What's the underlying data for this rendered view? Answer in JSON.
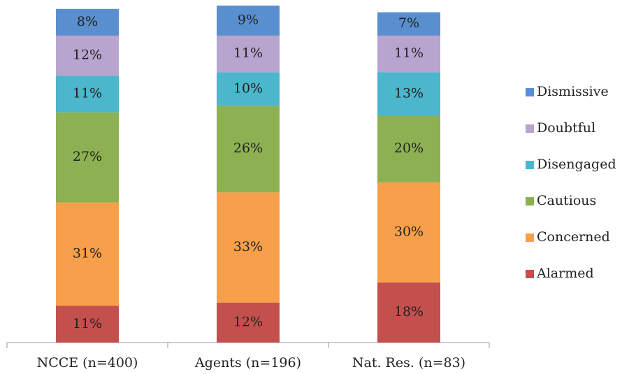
{
  "chart_data": {
    "type": "stacked_bar",
    "categories": [
      "NCCE (n=400)",
      "Agents (n=196)",
      "Nat. Res. (n=83)"
    ],
    "series": [
      {
        "name": "Alarmed",
        "color": "#c4504d",
        "values": [
          11,
          12,
          18
        ],
        "value_labels": [
          "11%",
          "12%",
          "18%"
        ]
      },
      {
        "name": "Concerned",
        "color": "#f79f4a",
        "values": [
          31,
          33,
          30
        ],
        "value_labels": [
          "31%",
          "33%",
          "30%"
        ]
      },
      {
        "name": "Cautious",
        "color": "#8db052",
        "values": [
          27,
          26,
          20
        ],
        "value_labels": [
          "27%",
          "26%",
          "20%"
        ]
      },
      {
        "name": "Disengaged",
        "color": "#4bb6cc",
        "values": [
          11,
          10,
          13
        ],
        "value_labels": [
          "11%",
          "10%",
          "13%"
        ]
      },
      {
        "name": "Doubtful",
        "color": "#b8a5cf",
        "values": [
          12,
          11,
          11
        ],
        "value_labels": [
          "12%",
          "11%",
          "11%"
        ]
      },
      {
        "name": "Dismissive",
        "color": "#5a8fcf",
        "values": [
          8,
          9,
          7
        ],
        "value_labels": [
          "8%",
          "9%",
          "7%"
        ]
      }
    ],
    "legend": "right"
  }
}
